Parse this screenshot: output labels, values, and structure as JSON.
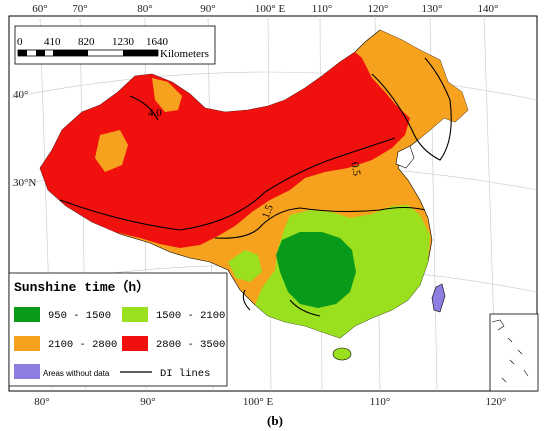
{
  "graticule": {
    "top_lon": [
      "60°",
      "70°",
      "80°",
      "90°",
      "100° E",
      "110°",
      "120°",
      "130°",
      "140°"
    ],
    "bottom_lon": [
      "80°",
      "90°",
      "100° E",
      "110°",
      "120°"
    ],
    "left_lat": [
      "40°",
      "30°N"
    ]
  },
  "scale_bar": {
    "ticks": [
      "0",
      "410",
      "820",
      "1230",
      "1640"
    ],
    "unit": "Kilometers"
  },
  "legend": {
    "title": "Sunshine time（h）",
    "classes": [
      {
        "label": "950 - 1500",
        "color": "#0a9a1a"
      },
      {
        "label": "1500 - 2100",
        "color": "#9ae01e"
      },
      {
        "label": "2100 - 2800",
        "color": "#f7a21e"
      },
      {
        "label": "2800 - 3500",
        "color": "#f0100e"
      }
    ],
    "no_data": {
      "label": "Areas without data",
      "color": "#8c7fe0"
    },
    "di_lines": {
      "label": "DI lines",
      "color": "#000000"
    }
  },
  "di_line_labels": [
    "4.0",
    "0.5",
    "1.5"
  ],
  "caption": "(b)"
}
